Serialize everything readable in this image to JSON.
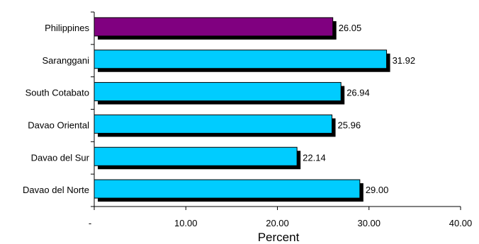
{
  "chart_data": {
    "type": "bar",
    "orientation": "horizontal",
    "categories": [
      "Philippines",
      "Saranggani",
      "South Cotabato",
      "Davao Oriental",
      "Davao del Sur",
      "Davao del Norte"
    ],
    "values": [
      26.05,
      31.92,
      26.94,
      25.96,
      22.14,
      29.0
    ],
    "value_labels": [
      "26.05",
      "31.92",
      "26.94",
      "25.96",
      "22.14",
      "29.00"
    ],
    "bar_colors": [
      "#800080",
      "#00ccff",
      "#00ccff",
      "#00ccff",
      "#00ccff",
      "#00ccff"
    ],
    "shadow_color": "#000000",
    "xlabel": "Percent",
    "xlim": [
      0,
      40
    ],
    "xticks": [
      0,
      10,
      20,
      30,
      40
    ],
    "xtick_labels": [
      "-",
      "10.00",
      "20.00",
      "30.00",
      "40.00"
    ],
    "grid": false,
    "legend": "none"
  }
}
